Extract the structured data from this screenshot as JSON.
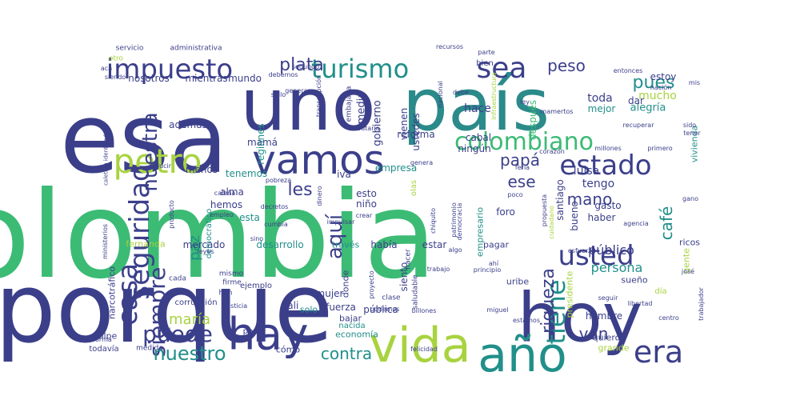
{
  "palette": {
    "navy": "#3b3f8a",
    "blue": "#3a5a92",
    "teal": "#2b8a8a",
    "sea": "#218f8a",
    "green": "#3cbb75",
    "lime": "#a8d340",
    "yellow": "#c8e020",
    "purple": "#482876"
  },
  "words": [
    {
      "text": "colombia",
      "color": "green"
    },
    {
      "text": "porque",
      "color": "navy"
    },
    {
      "text": "esa",
      "color": "navy"
    },
    {
      "text": "uno",
      "color": "navy"
    },
    {
      "text": "país",
      "color": "teal"
    },
    {
      "text": "hoy",
      "color": "navy"
    },
    {
      "text": "vida",
      "color": "lime"
    },
    {
      "text": "año",
      "color": "sea"
    },
    {
      "text": "hay",
      "color": "navy"
    },
    {
      "text": "vamos",
      "color": "navy"
    },
    {
      "text": "impuesto",
      "color": "navy"
    },
    {
      "text": "turismo",
      "color": "sea"
    },
    {
      "text": "sea",
      "color": "navy"
    },
    {
      "text": "petro",
      "color": "lime"
    },
    {
      "text": "colombiano",
      "color": "green"
    },
    {
      "text": "estado",
      "color": "navy"
    },
    {
      "text": "seguridad",
      "color": "navy"
    },
    {
      "text": "nuestra",
      "color": "navy"
    },
    {
      "text": "usted",
      "color": "navy"
    },
    {
      "text": "era",
      "color": "navy"
    },
    {
      "text": "siempre",
      "color": "navy"
    },
    {
      "text": "casa",
      "color": "navy"
    },
    {
      "text": "puede",
      "color": "navy"
    },
    {
      "text": "nuestro",
      "color": "sea"
    },
    {
      "text": "tiene",
      "color": "sea"
    },
    {
      "text": "riqueza",
      "color": "navy"
    },
    {
      "text": "plata",
      "color": "navy"
    },
    {
      "text": "peso",
      "color": "navy"
    },
    {
      "text": "pues",
      "color": "sea"
    },
    {
      "text": "mucho",
      "color": "lime"
    },
    {
      "text": "aquí",
      "color": "navy"
    },
    {
      "text": "les",
      "color": "navy"
    },
    {
      "text": "papá",
      "color": "navy"
    },
    {
      "text": "ese",
      "color": "navy"
    },
    {
      "text": "mano",
      "color": "navy"
    },
    {
      "text": "café",
      "color": "sea"
    },
    {
      "text": "van",
      "color": "navy"
    },
    {
      "text": "contra",
      "color": "sea"
    },
    {
      "text": "maría",
      "color": "lime"
    },
    {
      "text": "paz",
      "color": "sea"
    },
    {
      "text": "persona",
      "color": "sea"
    },
    {
      "text": "público",
      "color": "navy"
    },
    {
      "text": "tengo",
      "color": "navy"
    },
    {
      "text": "luisa",
      "color": "navy"
    },
    {
      "text": "estoy",
      "color": "navy"
    },
    {
      "text": "toda",
      "color": "navy"
    },
    {
      "text": "dar",
      "color": "navy"
    },
    {
      "text": "alegría",
      "color": "sea"
    },
    {
      "text": "mejor",
      "color": "sea"
    },
    {
      "text": "hace",
      "color": "navy"
    },
    {
      "text": "después",
      "color": "green"
    },
    {
      "text": "además",
      "color": "navy"
    },
    {
      "text": "mamá",
      "color": "navy"
    },
    {
      "text": "regiones",
      "color": "sea"
    },
    {
      "text": "gobierno",
      "color": "navy"
    },
    {
      "text": "media",
      "color": "navy"
    },
    {
      "text": "mundo",
      "color": "navy"
    },
    {
      "text": "nosotros",
      "color": "navy"
    },
    {
      "text": "mientras",
      "color": "navy"
    },
    {
      "text": "ustedes",
      "color": "navy"
    },
    {
      "text": "vienen",
      "color": "navy"
    },
    {
      "text": "reforma",
      "color": "navy"
    },
    {
      "text": "ningún",
      "color": "navy"
    },
    {
      "text": "cabal",
      "color": "navy"
    },
    {
      "text": "empresa",
      "color": "sea"
    },
    {
      "text": "tenemos",
      "color": "sea"
    },
    {
      "text": "menos",
      "color": "navy"
    },
    {
      "text": "iva",
      "color": "navy"
    },
    {
      "text": "esto",
      "color": "navy"
    },
    {
      "text": "niño",
      "color": "navy"
    },
    {
      "text": "hemos",
      "color": "navy"
    },
    {
      "text": "alma",
      "color": "navy"
    },
    {
      "text": "esta",
      "color": "sea"
    },
    {
      "text": "foro",
      "color": "navy"
    },
    {
      "text": "gasto",
      "color": "navy"
    },
    {
      "text": "haber",
      "color": "navy"
    },
    {
      "text": "bueno",
      "color": "navy"
    },
    {
      "text": "santiago",
      "color": "navy"
    },
    {
      "text": "mercado",
      "color": "navy"
    },
    {
      "text": "desarrollo",
      "color": "sea"
    },
    {
      "text": "había",
      "color": "navy"
    },
    {
      "text": "estar",
      "color": "navy"
    },
    {
      "text": "pagar",
      "color": "navy"
    },
    {
      "text": "través",
      "color": "sea"
    },
    {
      "text": "fernanda",
      "color": "lime"
    },
    {
      "text": "gente",
      "color": "lime"
    },
    {
      "text": "ricos",
      "color": "navy"
    },
    {
      "text": "sueño",
      "color": "navy"
    },
    {
      "text": "presidente",
      "color": "lime"
    },
    {
      "text": "vivienda",
      "color": "sea"
    },
    {
      "text": "siento",
      "color": "navy"
    },
    {
      "text": "mujer",
      "color": "navy"
    },
    {
      "text": "donde",
      "color": "navy"
    },
    {
      "text": "fuerza",
      "color": "navy"
    },
    {
      "text": "cali",
      "color": "navy"
    },
    {
      "text": "solo",
      "color": "sea"
    },
    {
      "text": "pública",
      "color": "navy"
    },
    {
      "text": "bajar",
      "color": "navy"
    },
    {
      "text": "hombre",
      "color": "navy"
    },
    {
      "text": "quiero",
      "color": "navy"
    },
    {
      "text": "grande",
      "color": "lime"
    },
    {
      "text": "uribe",
      "color": "navy"
    },
    {
      "text": "economía",
      "color": "sea"
    },
    {
      "text": "nacida",
      "color": "sea"
    },
    {
      "text": "cómo",
      "color": "navy"
    },
    {
      "text": "peor",
      "color": "navy"
    },
    {
      "text": "corrupción",
      "color": "navy"
    },
    {
      "text": "narcotráfico",
      "color": "navy"
    },
    {
      "text": "golpe",
      "color": "navy"
    },
    {
      "text": "todavía",
      "color": "navy"
    },
    {
      "text": "medida",
      "color": "navy"
    },
    {
      "text": "democrático",
      "color": "sea"
    },
    {
      "text": "ejemplo",
      "color": "navy"
    },
    {
      "text": "han",
      "color": "navy"
    },
    {
      "text": "mismo",
      "color": "navy"
    },
    {
      "text": "firme",
      "color": "navy"
    },
    {
      "text": "cada",
      "color": "navy"
    },
    {
      "text": "servicio",
      "color": "navy"
    },
    {
      "text": "administrativa",
      "color": "navy"
    },
    {
      "text": "otro",
      "color": "lime"
    },
    {
      "text": "acá",
      "color": "navy"
    },
    {
      "text": "siendo",
      "color": "navy"
    },
    {
      "text": "ministerios",
      "color": "navy"
    },
    {
      "text": "caletera identidad",
      "color": "navy"
    },
    {
      "text": "recursos",
      "color": "navy"
    },
    {
      "text": "parte",
      "color": "navy"
    },
    {
      "text": "bien",
      "color": "navy"
    },
    {
      "text": "entonces",
      "color": "navy"
    },
    {
      "text": "nación",
      "color": "navy"
    },
    {
      "text": "mis",
      "color": "navy"
    },
    {
      "text": "mamertos",
      "color": "navy"
    },
    {
      "text": "sido",
      "color": "navy"
    },
    {
      "text": "tener",
      "color": "navy"
    },
    {
      "text": "primero",
      "color": "navy"
    },
    {
      "text": "millones",
      "color": "navy"
    },
    {
      "text": "corazón",
      "color": "navy"
    },
    {
      "text": "feria",
      "color": "navy"
    },
    {
      "text": "poco",
      "color": "navy"
    },
    {
      "text": "propuesta",
      "color": "navy"
    },
    {
      "text": "cuidadano",
      "color": "lime"
    },
    {
      "text": "agencia",
      "color": "navy"
    },
    {
      "text": "esfuerzo",
      "color": "navy"
    },
    {
      "text": "josé",
      "color": "navy"
    },
    {
      "text": "seguir",
      "color": "navy"
    },
    {
      "text": "libertad",
      "color": "navy"
    },
    {
      "text": "trabajador",
      "color": "navy"
    },
    {
      "text": "día",
      "color": "lime"
    },
    {
      "text": "centro",
      "color": "navy"
    },
    {
      "text": "ley",
      "color": "navy"
    },
    {
      "text": "recuperar",
      "color": "navy"
    },
    {
      "text": "infraestructura",
      "color": "lime"
    },
    {
      "text": "debe",
      "color": "navy"
    },
    {
      "text": "nacional",
      "color": "navy"
    },
    {
      "text": "tributaria",
      "color": "navy"
    },
    {
      "text": "ver",
      "color": "navy"
    },
    {
      "text": "transcripción",
      "color": "navy"
    },
    {
      "text": "embajada",
      "color": "navy"
    },
    {
      "text": "sello",
      "color": "navy"
    },
    {
      "text": "generar",
      "color": "navy"
    },
    {
      "text": "segundo",
      "color": "navy"
    },
    {
      "text": "debemos",
      "color": "navy"
    },
    {
      "text": "pobreza",
      "color": "navy"
    },
    {
      "text": "reducir",
      "color": "navy"
    },
    {
      "text": "genera",
      "color": "navy"
    },
    {
      "text": "caleña",
      "color": "navy"
    },
    {
      "text": "producto",
      "color": "navy"
    },
    {
      "text": "empleo",
      "color": "navy"
    },
    {
      "text": "decretos",
      "color": "navy"
    },
    {
      "text": "cumbia",
      "color": "navy"
    },
    {
      "text": "sino",
      "color": "navy"
    },
    {
      "text": "leyes",
      "color": "navy"
    },
    {
      "text": "impulsar",
      "color": "navy"
    },
    {
      "text": "dinero",
      "color": "navy"
    },
    {
      "text": "olas",
      "color": "lime"
    },
    {
      "text": "crear",
      "color": "navy"
    },
    {
      "text": "chiquito",
      "color": "navy"
    },
    {
      "text": "patrimonio",
      "color": "navy"
    },
    {
      "text": "democracia",
      "color": "navy"
    },
    {
      "text": "empresario",
      "color": "sea"
    },
    {
      "text": "clase",
      "color": "navy"
    },
    {
      "text": "saludable",
      "color": "navy"
    },
    {
      "text": "trabajo",
      "color": "navy"
    },
    {
      "text": "principio",
      "color": "navy"
    },
    {
      "text": "ahí",
      "color": "navy"
    },
    {
      "text": "algo",
      "color": "navy"
    },
    {
      "text": "proyecto",
      "color": "navy"
    },
    {
      "text": "podemos",
      "color": "navy"
    },
    {
      "text": "billones",
      "color": "navy"
    },
    {
      "text": "estamos",
      "color": "navy"
    },
    {
      "text": "miguel",
      "color": "navy"
    },
    {
      "text": "felicidad",
      "color": "navy"
    },
    {
      "text": "justicia",
      "color": "navy"
    },
    {
      "text": "voy",
      "color": "navy"
    },
    {
      "text": "forma",
      "color": "navy"
    },
    {
      "text": "gano",
      "color": "navy"
    },
    {
      "text": "hacer",
      "color": "navy"
    }
  ]
}
